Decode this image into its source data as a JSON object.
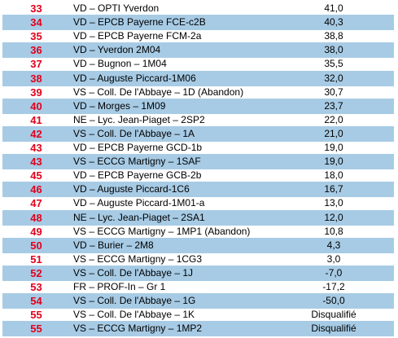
{
  "rows": [
    {
      "rank": "33",
      "name": "VD – OPTI Yverdon",
      "score": "41,0"
    },
    {
      "rank": "34",
      "name": "VD – EPCB Payerne FCE-c2B",
      "score": "40,3"
    },
    {
      "rank": "35",
      "name": "VD – EPCB Payerne FCM-2a",
      "score": "38,8"
    },
    {
      "rank": "36",
      "name": "VD – Yverdon 2M04",
      "score": "38,0"
    },
    {
      "rank": "37",
      "name": "VD – Bugnon – 1M04",
      "score": "35,5"
    },
    {
      "rank": "38",
      "name": "VD – Auguste Piccard-1M06",
      "score": "32,0"
    },
    {
      "rank": "39",
      "name": "VS – Coll. De l'Abbaye – 1D (Abandon)",
      "score": "30,7"
    },
    {
      "rank": "40",
      "name": "VD – Morges – 1M09",
      "score": "23,7"
    },
    {
      "rank": "41",
      "name": "NE – Lyc. Jean-Piaget – 2SP2",
      "score": "22,0"
    },
    {
      "rank": "42",
      "name": "VS – Coll. De l'Abbaye – 1A",
      "score": "21,0"
    },
    {
      "rank": "43",
      "name": "VD – EPCB Payerne GCD-1b",
      "score": "19,0"
    },
    {
      "rank": "43",
      "name": "VS – ECCG Martigny – 1SAF",
      "score": "19,0"
    },
    {
      "rank": "45",
      "name": "VD – EPCB Payerne GCB-2b",
      "score": "18,0"
    },
    {
      "rank": "46",
      "name": "VD – Auguste Piccard-1C6",
      "score": "16,7"
    },
    {
      "rank": "47",
      "name": "VD – Auguste Piccard-1M01-a",
      "score": "13,0"
    },
    {
      "rank": "48",
      "name": "NE – Lyc. Jean-Piaget – 2SA1",
      "score": "12,0"
    },
    {
      "rank": "49",
      "name": "VS – ECCG Martigny – 1MP1 (Abandon)",
      "score": "10,8"
    },
    {
      "rank": "50",
      "name": "VD – Burier – 2M8",
      "score": "4,3"
    },
    {
      "rank": "51",
      "name": "VS – ECCG Martigny – 1CG3",
      "score": "3,0"
    },
    {
      "rank": "52",
      "name": "VS – Coll. De l'Abbaye – 1J",
      "score": "-7,0"
    },
    {
      "rank": "53",
      "name": "FR – PROF-In – Gr 1",
      "score": "-17,2"
    },
    {
      "rank": "54",
      "name": "VS – Coll. De l'Abbaye – 1G",
      "score": "-50,0"
    },
    {
      "rank": "55",
      "name": "VS – Coll. De l'Abbaye – 1K",
      "score": "Disqualifié"
    },
    {
      "rank": "55",
      "name": "VS – ECCG Martigny – 1MP2",
      "score": "Disqualifié"
    }
  ],
  "colors": {
    "rank_text": "#e1001b",
    "row_shade": "#a7cbe5",
    "text": "#000000"
  }
}
